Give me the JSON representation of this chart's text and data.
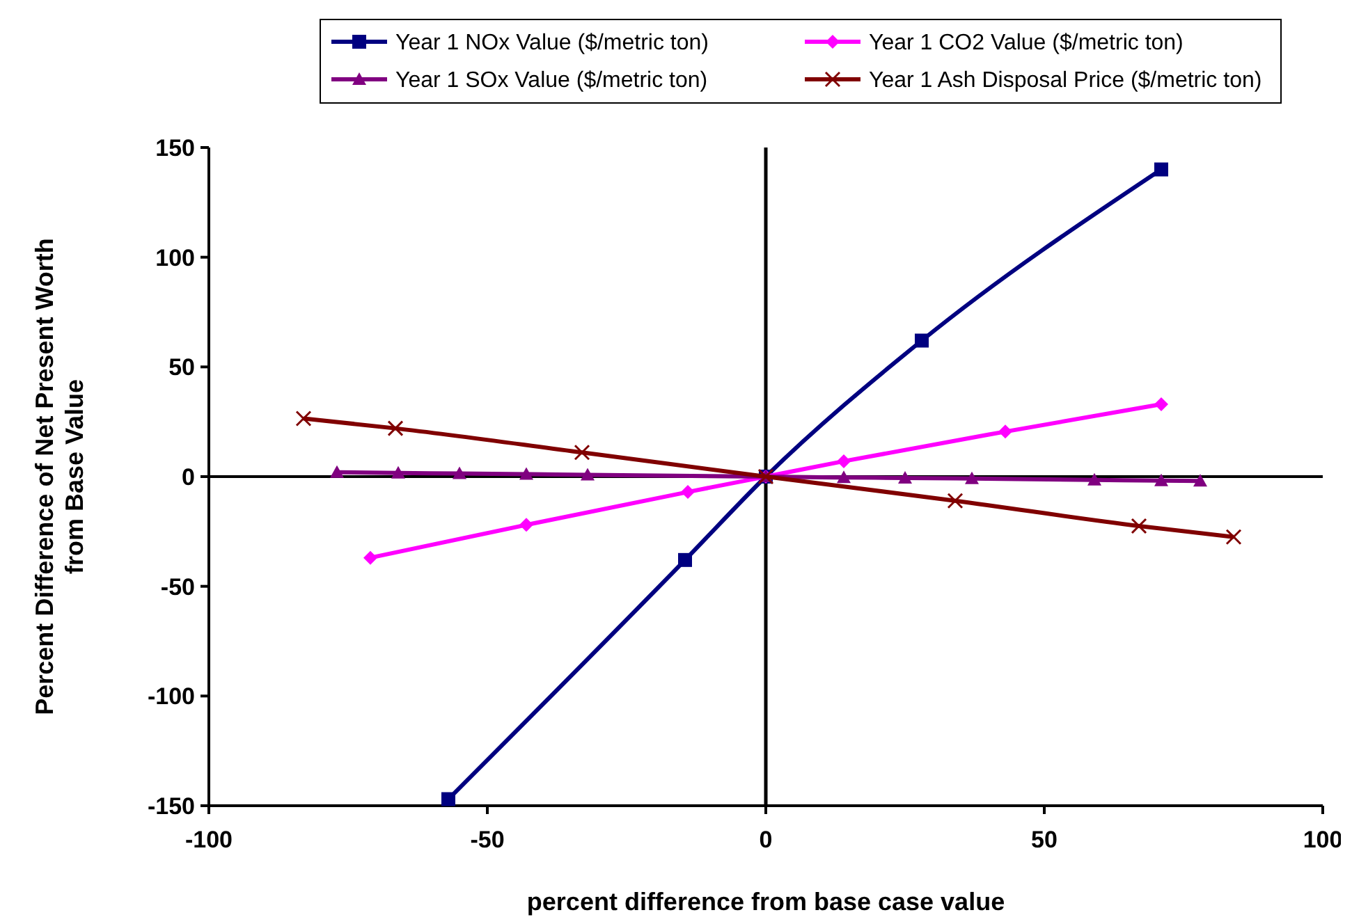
{
  "chart_data": {
    "type": "line",
    "xlabel": "percent difference from base case value",
    "ylabel": "Percent Difference of Net Present Worth from Base Value",
    "xlim": [
      -100,
      100
    ],
    "xticks": [
      -100,
      -50,
      0,
      50,
      100
    ],
    "ylim": [
      -150,
      150
    ],
    "yticks": [
      -150,
      -100,
      -50,
      0,
      50,
      100,
      150
    ],
    "grid": false,
    "legend": "top",
    "series": [
      {
        "name": "Year 1 NOx Value ($/metric ton)",
        "color": "#000080",
        "marker": "square",
        "x": [
          -57,
          -14.5,
          0,
          28,
          71
        ],
        "values": [
          -147,
          -38,
          0,
          62,
          140
        ]
      },
      {
        "name": "Year 1 CO2 Value ($/metric ton)",
        "color": "#ff00ff",
        "marker": "diamond",
        "x": [
          -71,
          -43,
          -14,
          0,
          14,
          43,
          71
        ],
        "values": [
          -37,
          -22,
          -7,
          0,
          7,
          20.5,
          33
        ]
      },
      {
        "name": "Year 1 SOx Value ($/metric ton)",
        "color": "#800080",
        "marker": "triangle",
        "x": [
          -77,
          -66,
          -55,
          -43,
          -32,
          0,
          14,
          25,
          37,
          59,
          71,
          78
        ],
        "values": [
          2,
          1.7,
          1.4,
          1.1,
          0.8,
          0,
          -0.4,
          -0.6,
          -0.9,
          -1.5,
          -1.8,
          -2
        ]
      },
      {
        "name": "Year 1 Ash Disposal Price ($/metric ton)",
        "color": "#800000",
        "marker": "cross",
        "x": [
          -83,
          -66.5,
          -33,
          0,
          34,
          67,
          84
        ],
        "values": [
          26.5,
          22,
          11,
          0,
          -11,
          -22.5,
          -27.5
        ]
      }
    ]
  }
}
